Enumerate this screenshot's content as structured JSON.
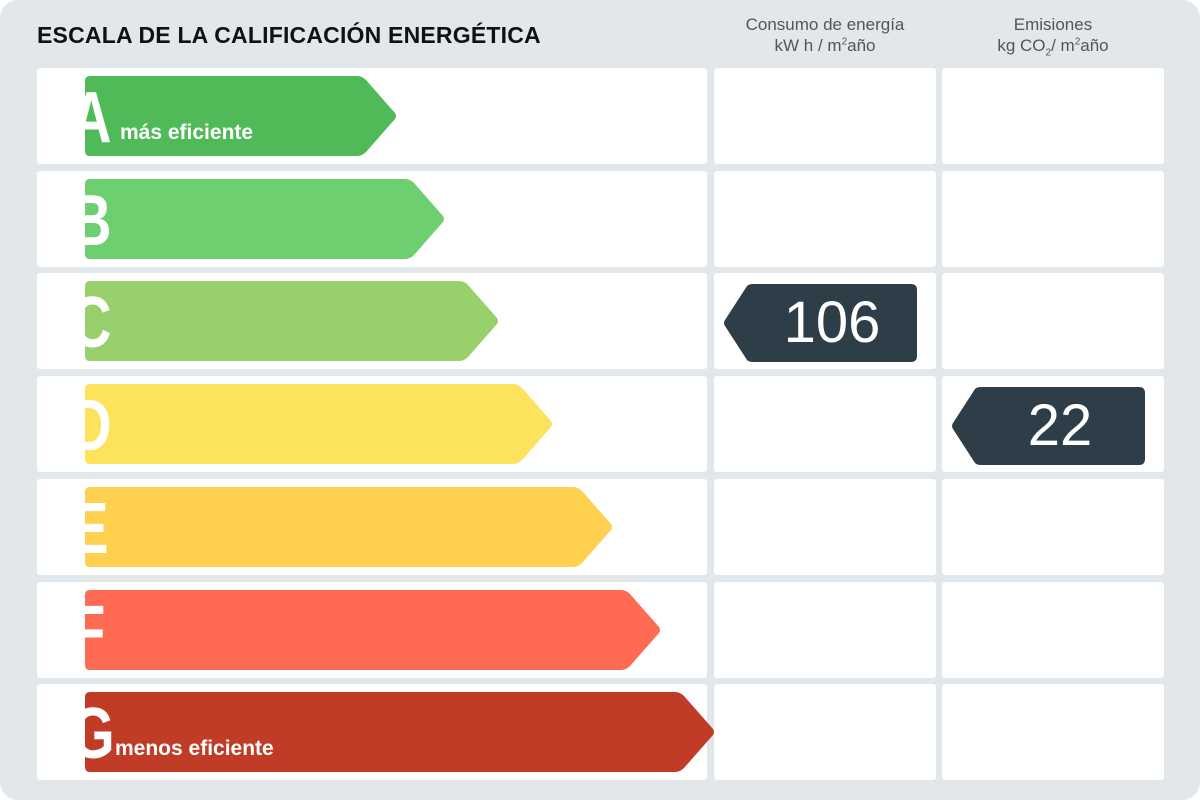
{
  "title": "ESCALA DE LA CALIFICACIÓN ENERGÉTICA",
  "columns": {
    "consumo": {
      "line1": "Consumo de energía",
      "unit_a": "kW h / m",
      "unit_sup": "2",
      "unit_b": "año"
    },
    "emisiones": {
      "line1": "Emisiones",
      "unit_a": "kg CO",
      "unit_sub": "2",
      "unit_c": "/ m",
      "unit_sup": "2",
      "unit_b": "año"
    }
  },
  "ratings": [
    {
      "letter": "A",
      "sublabel": "más eficiente",
      "color": "#4fba57"
    },
    {
      "letter": "B",
      "sublabel": "",
      "color": "#6dcf70"
    },
    {
      "letter": "C",
      "sublabel": "",
      "color": "#98d16b"
    },
    {
      "letter": "D",
      "sublabel": "",
      "color": "#fde25c"
    },
    {
      "letter": "E",
      "sublabel": "",
      "color": "#fdd04f"
    },
    {
      "letter": "F",
      "sublabel": "",
      "color": "#fe6a52"
    },
    {
      "letter": "G",
      "sublabel": "menos eficiente",
      "color": "#c03c26"
    }
  ],
  "consumo_value": "106",
  "consumo_rating": "C",
  "emisiones_value": "22",
  "emisiones_rating": "D",
  "badge_color": "#2e3e48"
}
